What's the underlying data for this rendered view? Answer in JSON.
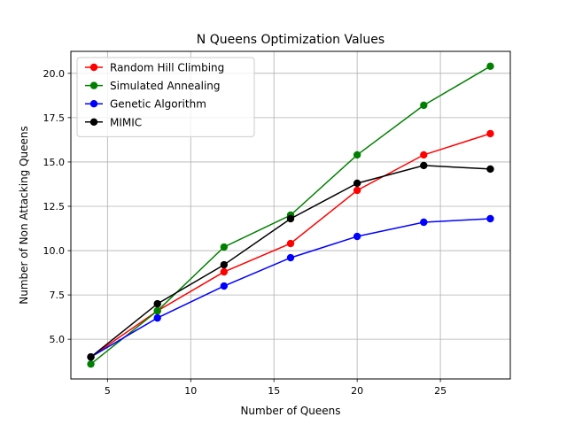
{
  "chart_data": {
    "type": "line",
    "title": "N Queens Optimization Values",
    "xlabel": "Number of Queens",
    "ylabel": "Number of Non Attacking Queens",
    "x": [
      4,
      8,
      12,
      16,
      20,
      24,
      28
    ],
    "xlim": [
      2.8,
      29.2
    ],
    "ylim": [
      2.76,
      21.24
    ],
    "xticks": [
      5,
      10,
      15,
      20,
      25
    ],
    "yticks": [
      5.0,
      7.5,
      10.0,
      12.5,
      15.0,
      17.5,
      20.0
    ],
    "xtick_labels": [
      "5",
      "10",
      "15",
      "20",
      "25"
    ],
    "ytick_labels": [
      "5.0",
      "7.5",
      "10.0",
      "12.5",
      "15.0",
      "17.5",
      "20.0"
    ],
    "grid": true,
    "legend_position": "top-left",
    "series": [
      {
        "name": "Random Hill Climbing",
        "color": "#ff0000",
        "values": [
          4.0,
          6.6,
          8.8,
          10.4,
          13.4,
          15.4,
          16.6
        ]
      },
      {
        "name": "Simulated Annealing",
        "color": "#008000",
        "values": [
          3.6,
          6.6,
          10.2,
          12.0,
          15.4,
          18.2,
          20.4
        ]
      },
      {
        "name": "Genetic Algorithm",
        "color": "#0000ff",
        "values": [
          4.0,
          6.2,
          8.0,
          9.6,
          10.8,
          11.6,
          11.8
        ]
      },
      {
        "name": "MIMIC",
        "color": "#000000",
        "values": [
          4.0,
          7.0,
          9.2,
          11.8,
          13.8,
          14.8,
          14.6
        ]
      }
    ]
  }
}
